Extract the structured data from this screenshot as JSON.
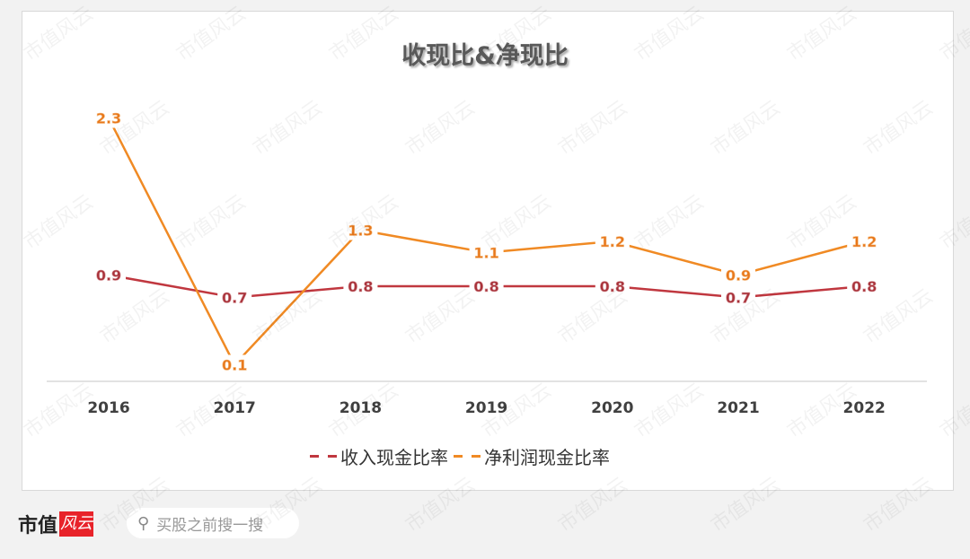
{
  "chart_data": {
    "type": "line",
    "title": "收现比&净现比",
    "categories": [
      "2016",
      "2017",
      "2018",
      "2019",
      "2020",
      "2021",
      "2022"
    ],
    "series": [
      {
        "name": "收入现金比率",
        "values": [
          0.9,
          0.7,
          0.8,
          0.8,
          0.8,
          0.7,
          0.8
        ],
        "color": "#c0373f"
      },
      {
        "name": "净利润现金比率",
        "values": [
          2.3,
          0.1,
          1.3,
          1.1,
          1.2,
          0.9,
          1.2
        ],
        "color": "#f08a24"
      }
    ],
    "ylim": [
      0,
      2.5
    ],
    "grid": false,
    "legend": "bottom",
    "data_labels": true
  },
  "footer": {
    "logo": "市值风云",
    "logo_text": "市值",
    "search_placeholder": "买股之前搜一搜"
  },
  "watermark": "市值风云"
}
